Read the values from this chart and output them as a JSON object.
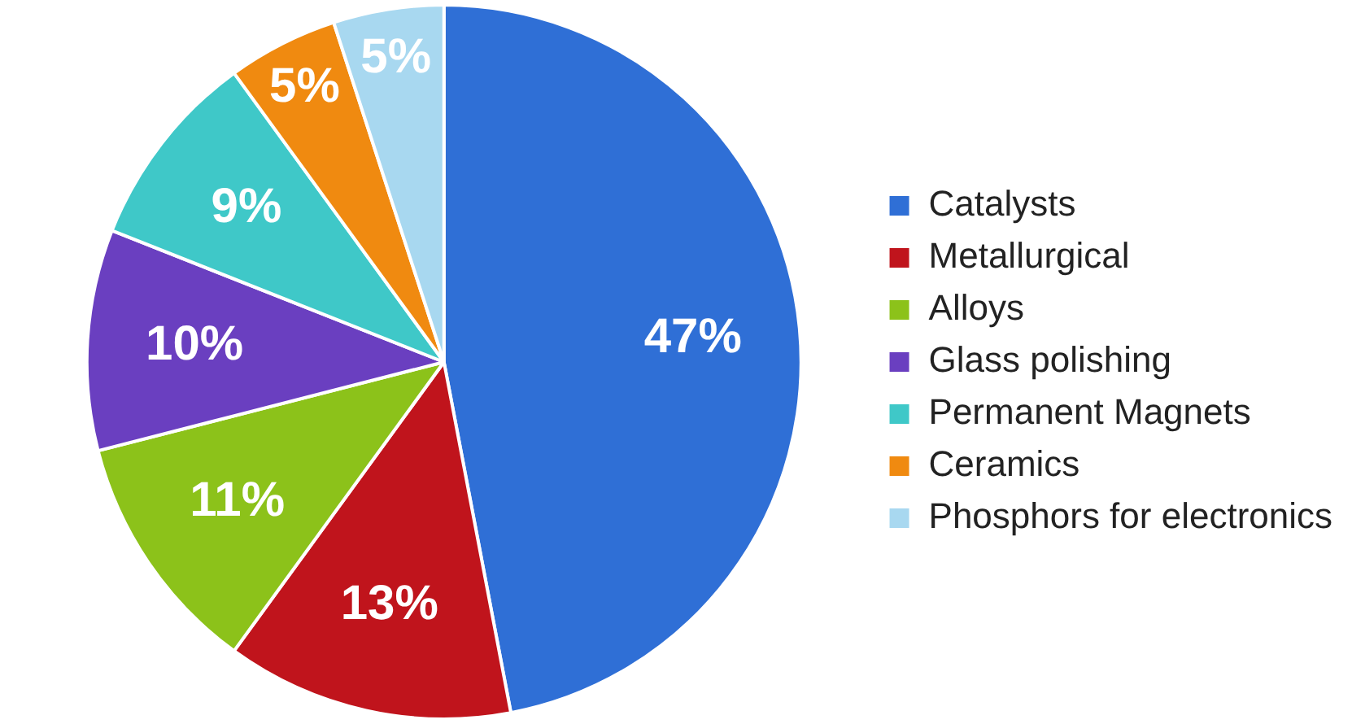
{
  "chart_data": {
    "type": "pie",
    "categories": [
      "Catalysts",
      "Metallurgical",
      "Alloys",
      "Glass polishing",
      "Permanent Magnets",
      "Ceramics",
      "Phosphors for electronics"
    ],
    "values": [
      47,
      13,
      11,
      10,
      9,
      5,
      5
    ],
    "colors": [
      "#2f6fd6",
      "#c0141c",
      "#8cc21a",
      "#6a3fc0",
      "#3fc8c8",
      "#f08a10",
      "#a8d8f0"
    ],
    "value_labels": [
      "47%",
      "13%",
      "11%",
      "10%",
      "9%",
      "5%",
      "5%"
    ],
    "legend": "right"
  }
}
